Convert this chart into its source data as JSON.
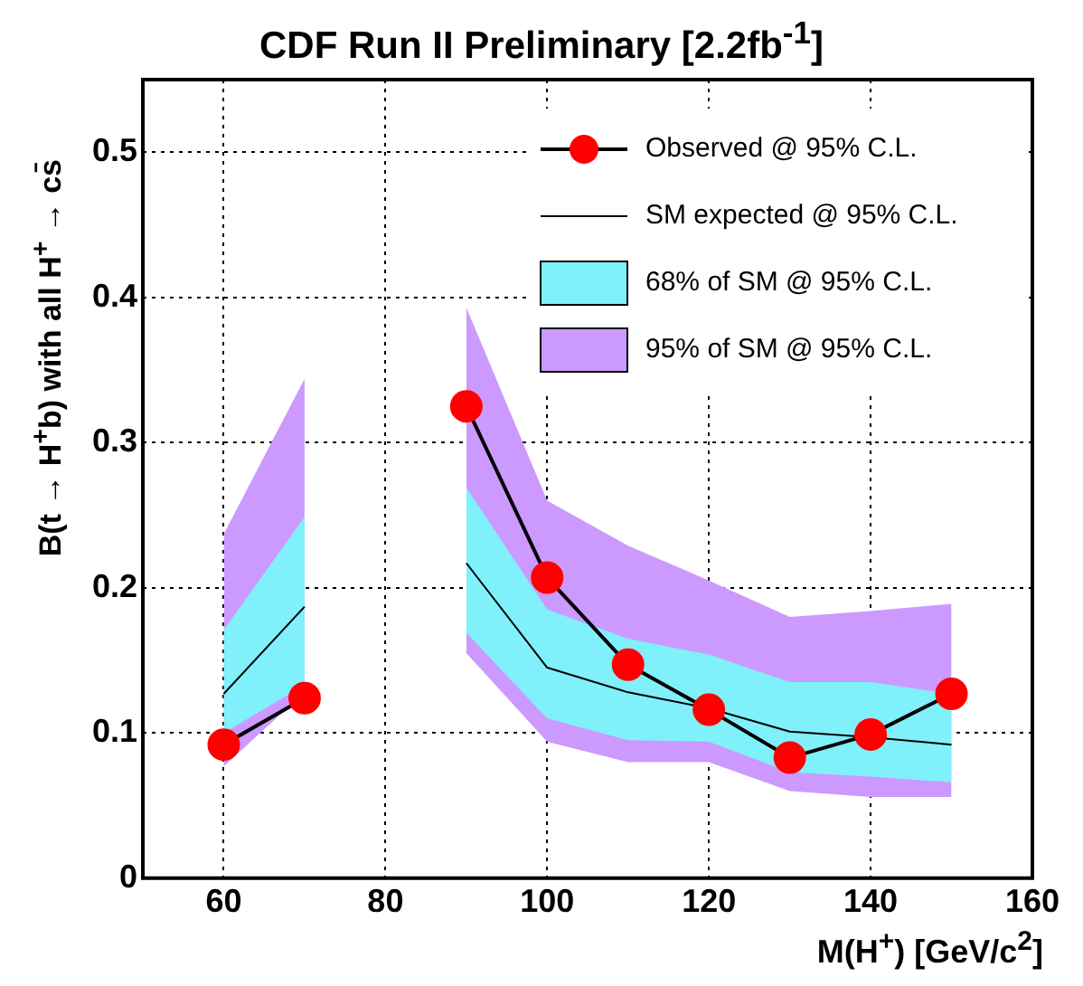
{
  "chart_data": {
    "type": "line",
    "title": "CDF Run II Preliminary [2.2fb$^{-1}$]",
    "xlabel": "M(H$^{+}$) [GeV/c$^{2}$]",
    "ylabel": "B(t → H$^{+}$b) with all H$^{+}$ → cs̄",
    "x": [
      60,
      70,
      80,
      90,
      100,
      110,
      120,
      130,
      140,
      150
    ],
    "series": [
      {
        "name": "Observed @ 95% C.L.",
        "type": "line",
        "marker": "circle",
        "color": "#ff0000",
        "values": [
          0.092,
          0.124,
          null,
          0.325,
          0.207,
          0.147,
          0.116,
          0.083,
          0.099,
          0.127
        ]
      },
      {
        "name": "SM expected @ 95% C.L.",
        "type": "line",
        "marker": "none",
        "color": "#000000",
        "values": [
          0.127,
          0.187,
          null,
          0.217,
          0.145,
          0.128,
          0.117,
          0.101,
          0.097,
          0.092
        ]
      },
      {
        "name": "68% of SM @ 95% C.L.",
        "type": "area",
        "color": "#80f0fa",
        "values": [
          null,
          null,
          null,
          null,
          null,
          null,
          null,
          null,
          null,
          null
        ],
        "lower": [
          0.1,
          0.133,
          null,
          0.169,
          0.11,
          0.095,
          0.094,
          0.073,
          0.07,
          0.066
        ],
        "upper": [
          0.171,
          0.249,
          null,
          0.269,
          0.185,
          0.165,
          0.154,
          0.135,
          0.135,
          0.127
        ]
      },
      {
        "name": "95% of SM @ 95% C.L.",
        "type": "area",
        "color": "#cc99ff",
        "values": [
          null,
          null,
          null,
          null,
          null,
          null,
          null,
          null,
          null,
          null
        ],
        "lower": [
          0.077,
          0.128,
          null,
          0.155,
          0.094,
          0.08,
          0.08,
          0.06,
          0.056,
          0.056
        ],
        "upper": [
          0.237,
          0.344,
          null,
          0.393,
          0.26,
          0.229,
          0.205,
          0.18,
          0.184,
          0.189
        ]
      }
    ],
    "xlim": [
      50,
      160
    ],
    "xticks": [
      60,
      80,
      100,
      120,
      140,
      160
    ],
    "ylim": [
      0,
      0.55
    ],
    "yticks": [
      0,
      0.1,
      0.2,
      0.3,
      0.4,
      0.5
    ],
    "grid": true,
    "legend": "top right"
  }
}
